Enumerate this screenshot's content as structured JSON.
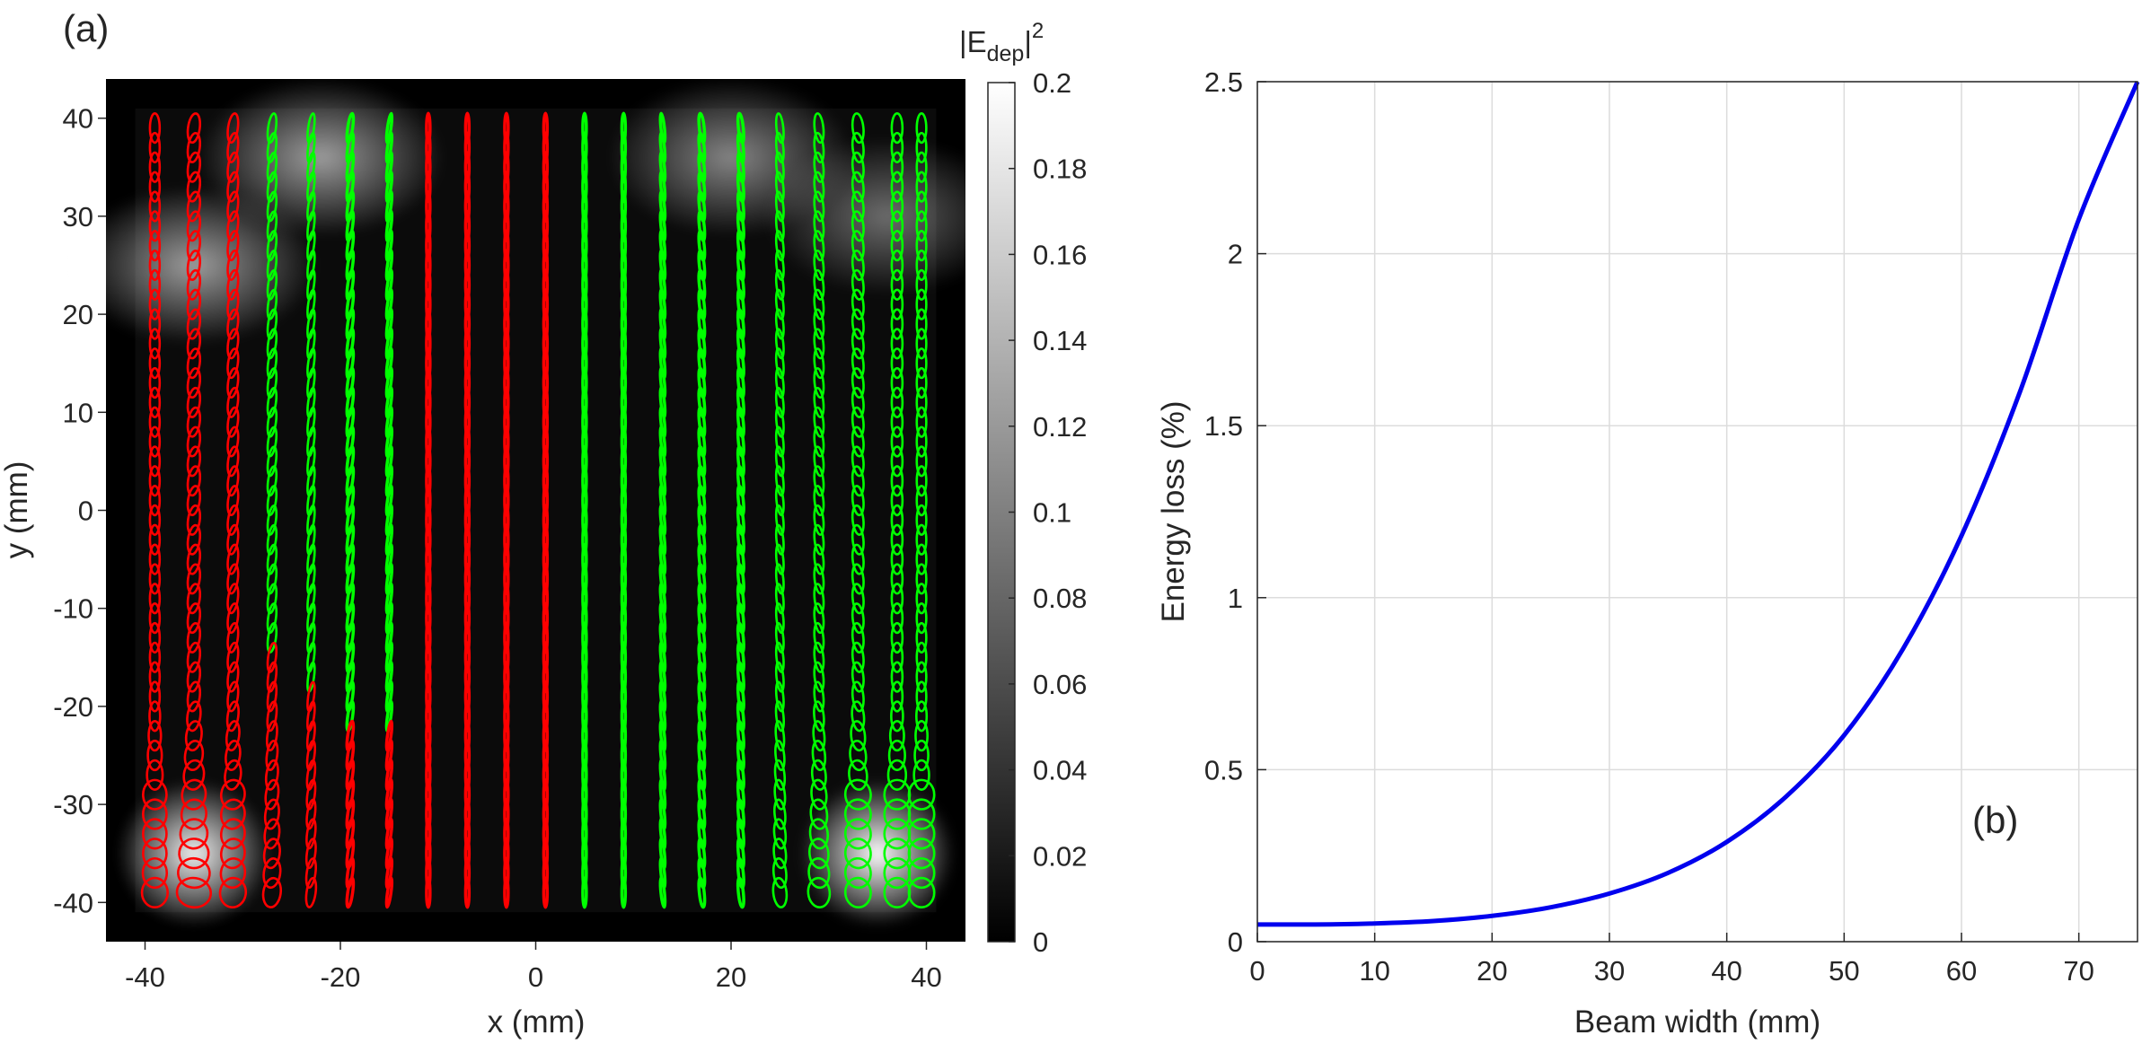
{
  "chart_data": [
    {
      "type": "heatmap",
      "panel_label": "(a)",
      "title": "",
      "xlabel": "x (mm)",
      "ylabel": "y (mm)",
      "xlim": [
        -44,
        44
      ],
      "ylim": [
        -44,
        44
      ],
      "xticks": [
        -40,
        -20,
        0,
        20,
        40
      ],
      "yticks": [
        -40,
        -30,
        -20,
        -10,
        0,
        10,
        20,
        30,
        40
      ],
      "colormap": "gray",
      "colorbar": {
        "label_main": "|E",
        "label_sub": "dep",
        "label_suffix": "|",
        "label_sup": "2",
        "range": [
          0,
          0.2
        ],
        "ticks": [
          "0",
          "0.02",
          "0.04",
          "0.06",
          "0.08",
          "0.1",
          "0.12",
          "0.14",
          "0.16",
          "0.18",
          "0.2"
        ]
      },
      "field_extent": {
        "x": [
          -41,
          41
        ],
        "y": [
          -41,
          41
        ]
      },
      "hotspots": [
        {
          "x": -35,
          "y": -35,
          "value": 0.18
        },
        {
          "x": 35,
          "y": -35,
          "value": 0.2
        },
        {
          "x": -35,
          "y": 25,
          "value": 0.03
        },
        {
          "x": -22,
          "y": 36,
          "value": 0.03
        },
        {
          "x": 20,
          "y": 36,
          "value": 0.025
        },
        {
          "x": 36,
          "y": 30,
          "value": 0.02
        }
      ],
      "ellipse_grid": {
        "columns_x": [
          -39,
          -35,
          -31,
          -27,
          -23,
          -19,
          -15,
          -11,
          -7,
          -3,
          1,
          5,
          9,
          13,
          17,
          21,
          25,
          29,
          33,
          37,
          39.5
        ],
        "rows_y": [
          39,
          37,
          35,
          33,
          31,
          29,
          27,
          25,
          23,
          21,
          19,
          17,
          15,
          13,
          11,
          9,
          7,
          5,
          3,
          1,
          -1,
          -3,
          -5,
          -7,
          -9,
          -11,
          -13,
          -15,
          -17,
          -19,
          -21,
          -23,
          -25,
          -27,
          -29,
          -31,
          -33,
          -35,
          -37,
          -39
        ],
        "handedness_colors": {
          "red": "#ff0000",
          "green": "#00ff00"
        }
      }
    },
    {
      "type": "line",
      "panel_label": "(b)",
      "title": "",
      "xlabel": "Beam width (mm)",
      "ylabel": "Energy loss (%)",
      "xlim": [
        0,
        75
      ],
      "ylim": [
        0,
        2.5
      ],
      "xticks": [
        "0",
        "10",
        "20",
        "30",
        "40",
        "50",
        "60",
        "70"
      ],
      "yticks": [
        "0",
        "0.5",
        "1",
        "1.5",
        "2",
        "2.5"
      ],
      "grid": true,
      "line_color": "#0000ee",
      "series": [
        {
          "x": [
            0,
            5,
            10,
            15,
            20,
            25,
            30,
            35,
            40,
            45,
            50,
            55,
            60,
            65,
            70,
            75
          ],
          "values": [
            0.05,
            0.05,
            0.053,
            0.06,
            0.075,
            0.1,
            0.14,
            0.2,
            0.29,
            0.42,
            0.6,
            0.85,
            1.18,
            1.6,
            2.1,
            2.5
          ]
        }
      ]
    }
  ]
}
